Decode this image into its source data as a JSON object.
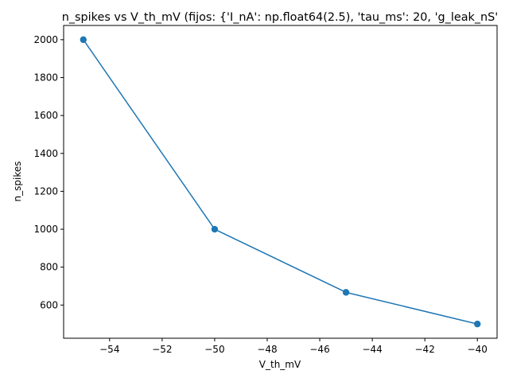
{
  "chart_data": {
    "type": "line",
    "title": "n_spikes vs V_th_mV (fijos: {'I_nA': np.float64(2.5), 'tau_ms': 20, 'g_leak_nS'",
    "xlabel": "V_th_mV",
    "ylabel": "n_spikes",
    "xlim": [
      -55.75,
      -39.25
    ],
    "ylim": [
      425,
      2075
    ],
    "x_ticks": [
      -54,
      -52,
      -50,
      -48,
      -46,
      -44,
      -42,
      -40
    ],
    "x_tick_labels": [
      "−54",
      "−52",
      "−50",
      "−48",
      "−46",
      "−44",
      "−42",
      "−40"
    ],
    "y_ticks": [
      600,
      800,
      1000,
      1200,
      1400,
      1600,
      1800,
      2000
    ],
    "y_tick_labels": [
      "600",
      "800",
      "1000",
      "1200",
      "1400",
      "1600",
      "1800",
      "2000"
    ],
    "grid": false,
    "marker": "circle",
    "series": [
      {
        "x": [
          -55,
          -50,
          -45,
          -40
        ],
        "y": [
          2000,
          1000,
          667,
          500
        ],
        "color": "#1f77b4"
      }
    ]
  }
}
